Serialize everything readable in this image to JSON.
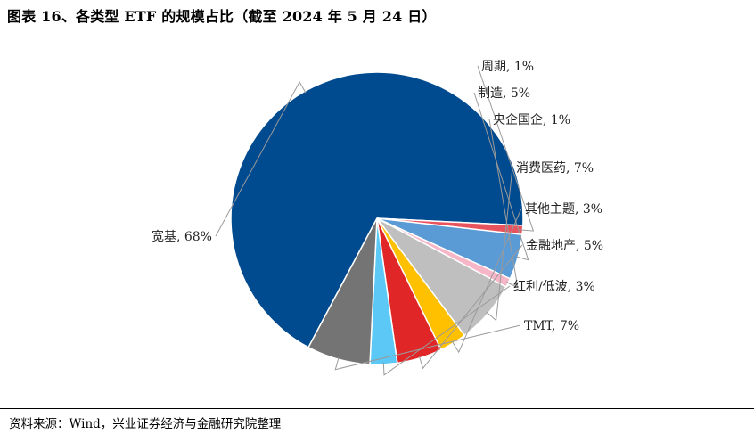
{
  "header": {
    "title": "图表 16、各类型 ETF 的规模占比（截至 2024 年 5 月 24 日）"
  },
  "footer": {
    "source": "资料来源：Wind，兴业证券经济与金融研究院整理"
  },
  "chart_data": {
    "type": "pie",
    "title": "",
    "start_angle_deg": 208,
    "direction": "clockwise",
    "slices": [
      {
        "label": "宽基",
        "value": 68,
        "text": "宽基, 68%",
        "color": "#004a8f"
      },
      {
        "label": "周期",
        "value": 1,
        "text": "周期, 1%",
        "color": "#e8545e"
      },
      {
        "label": "制造",
        "value": 5,
        "text": "制造, 5%",
        "color": "#5b9bd5"
      },
      {
        "label": "央企国企",
        "value": 1,
        "text": "央企国企, 1%",
        "color": "#f7b6c8"
      },
      {
        "label": "消费医药",
        "value": 7,
        "text": "消费医药, 7%",
        "color": "#bfbfbf"
      },
      {
        "label": "其他主题",
        "value": 3,
        "text": "其他主题, 3%",
        "color": "#ffc000"
      },
      {
        "label": "金融地产",
        "value": 5,
        "text": "金融地产, 5%",
        "color": "#e02626"
      },
      {
        "label": "红利/低波",
        "value": 3,
        "text": "红利/低波, 3%",
        "color": "#5bc8f5"
      },
      {
        "label": "TMT",
        "value": 7,
        "text": "TMT, 7%",
        "color": "#747474"
      }
    ]
  }
}
